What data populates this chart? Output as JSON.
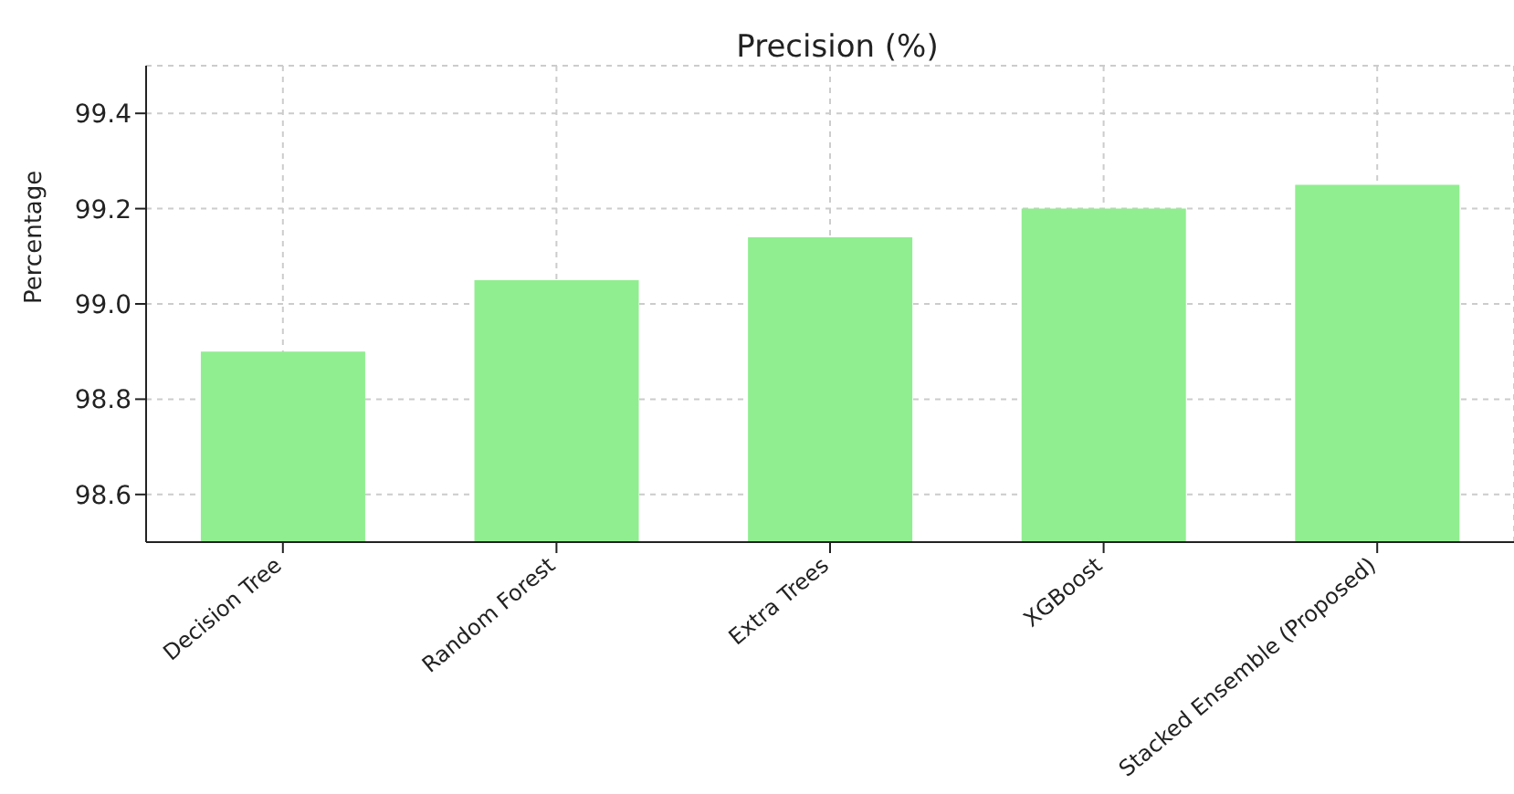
{
  "chart_data": {
    "type": "bar",
    "title": "Precision (%)",
    "ylabel": "Percentage",
    "categories": [
      "Decision Tree",
      "Random Forest",
      "Extra Trees",
      "XGBoost",
      "Stacked Ensemble (Proposed)"
    ],
    "values": [
      98.9,
      99.05,
      99.14,
      99.2,
      99.25
    ],
    "color": "#90ee90",
    "ylim": [
      98.5,
      99.5
    ],
    "yticks": [
      {
        "value": 98.6,
        "label": "98.6"
      },
      {
        "value": 98.8,
        "label": "98.8"
      },
      {
        "value": 99.0,
        "label": "99.0"
      },
      {
        "value": 99.2,
        "label": "99.2"
      },
      {
        "value": 99.4,
        "label": "99.4"
      }
    ],
    "grid": true
  }
}
